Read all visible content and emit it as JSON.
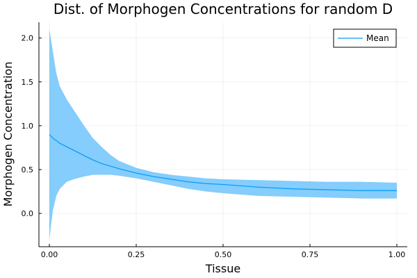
{
  "chart_data": {
    "type": "area",
    "title": "Dist. of Morphogen Concentrations for random D",
    "xlabel": "Tissue",
    "ylabel": "Morphogen Concentration",
    "xlim": [
      -0.03,
      1.03
    ],
    "ylim": [
      -0.38,
      2.18
    ],
    "grid": true,
    "legend_position": "top-right",
    "colors": {
      "mean_line": "#009af9",
      "band_fill": "#84cdfc"
    },
    "x_ticks": [
      0.0,
      0.25,
      0.5,
      0.75,
      1.0
    ],
    "x_tick_labels": [
      "0.00",
      "0.25",
      "0.50",
      "0.75",
      "1.00"
    ],
    "y_ticks": [
      0.0,
      0.5,
      1.0,
      1.5,
      2.0
    ],
    "y_tick_labels": [
      "0.0",
      "0.5",
      "1.0",
      "1.5",
      "2.0"
    ],
    "x": [
      0.0,
      0.01,
      0.02,
      0.03,
      0.05,
      0.07,
      0.1,
      0.125,
      0.15,
      0.175,
      0.2,
      0.25,
      0.3,
      0.35,
      0.4,
      0.45,
      0.5,
      0.6,
      0.7,
      0.8,
      0.9,
      1.0
    ],
    "series": [
      {
        "name": "Mean",
        "values": [
          0.9,
          0.86,
          0.83,
          0.8,
          0.76,
          0.72,
          0.66,
          0.61,
          0.57,
          0.54,
          0.51,
          0.46,
          0.42,
          0.39,
          0.36,
          0.34,
          0.33,
          0.3,
          0.28,
          0.27,
          0.26,
          0.26
        ],
        "band_upper": [
          2.1,
          1.85,
          1.6,
          1.45,
          1.3,
          1.18,
          1.0,
          0.86,
          0.76,
          0.67,
          0.6,
          0.52,
          0.47,
          0.44,
          0.42,
          0.4,
          0.39,
          0.38,
          0.37,
          0.36,
          0.36,
          0.35
        ],
        "band_lower": [
          -0.3,
          0.03,
          0.2,
          0.28,
          0.36,
          0.39,
          0.42,
          0.44,
          0.44,
          0.44,
          0.43,
          0.4,
          0.36,
          0.32,
          0.28,
          0.25,
          0.23,
          0.2,
          0.19,
          0.18,
          0.17,
          0.17
        ]
      }
    ]
  }
}
